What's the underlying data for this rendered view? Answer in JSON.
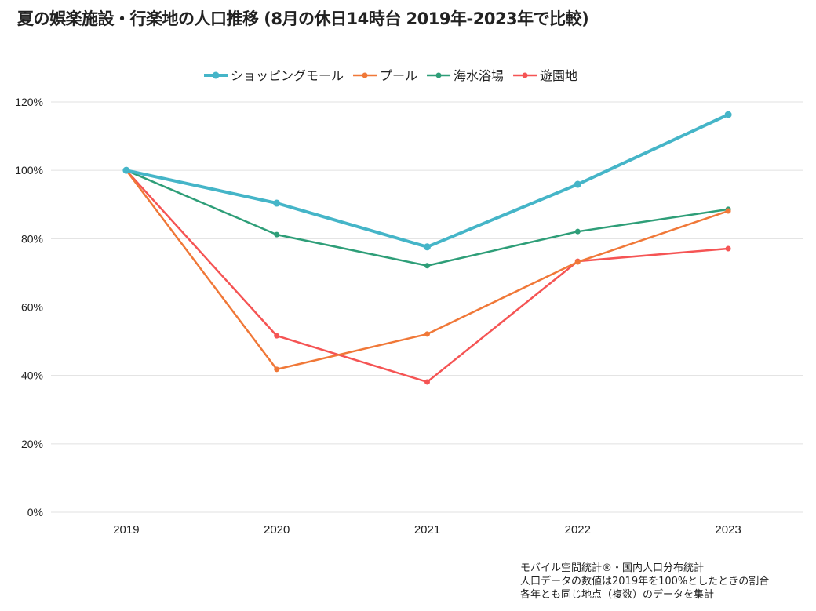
{
  "chart_data": {
    "type": "line",
    "title": "夏の娯楽施設・行楽地の人口推移 (8月の休日14時台 2019年-2023年で比較)",
    "xlabel": "",
    "ylabel": "",
    "categories": [
      "2019",
      "2020",
      "2021",
      "2022",
      "2023"
    ],
    "ylim": [
      0,
      120
    ],
    "yticks": [
      0,
      20,
      40,
      60,
      80,
      100,
      120
    ],
    "ytick_labels": [
      "0%",
      "20%",
      "40%",
      "60%",
      "80%",
      "100%",
      "120%"
    ],
    "grid": true,
    "legend_position": "top-center",
    "series": [
      {
        "name": "ショッピングモール",
        "color": "#45b5c8",
        "bold": true,
        "values": [
          100,
          90.4,
          77.6,
          95.9,
          116.3
        ]
      },
      {
        "name": "プール",
        "color": "#f07838",
        "bold": false,
        "values": [
          100,
          41.8,
          52.1,
          73.2,
          88.1
        ]
      },
      {
        "name": "海水浴場",
        "color": "#2e9e78",
        "bold": false,
        "values": [
          100,
          81.2,
          72.1,
          82.1,
          88.6
        ]
      },
      {
        "name": "遊園地",
        "color": "#f55454",
        "bold": false,
        "values": [
          100,
          51.6,
          38.1,
          73.4,
          77.1
        ]
      }
    ]
  },
  "notes": [
    "モバイル空間統計®・国内人口分布統計",
    "人口データの数値は2019年を100%としたときの割合",
    "各年とも同じ地点（複数）のデータを集計"
  ]
}
